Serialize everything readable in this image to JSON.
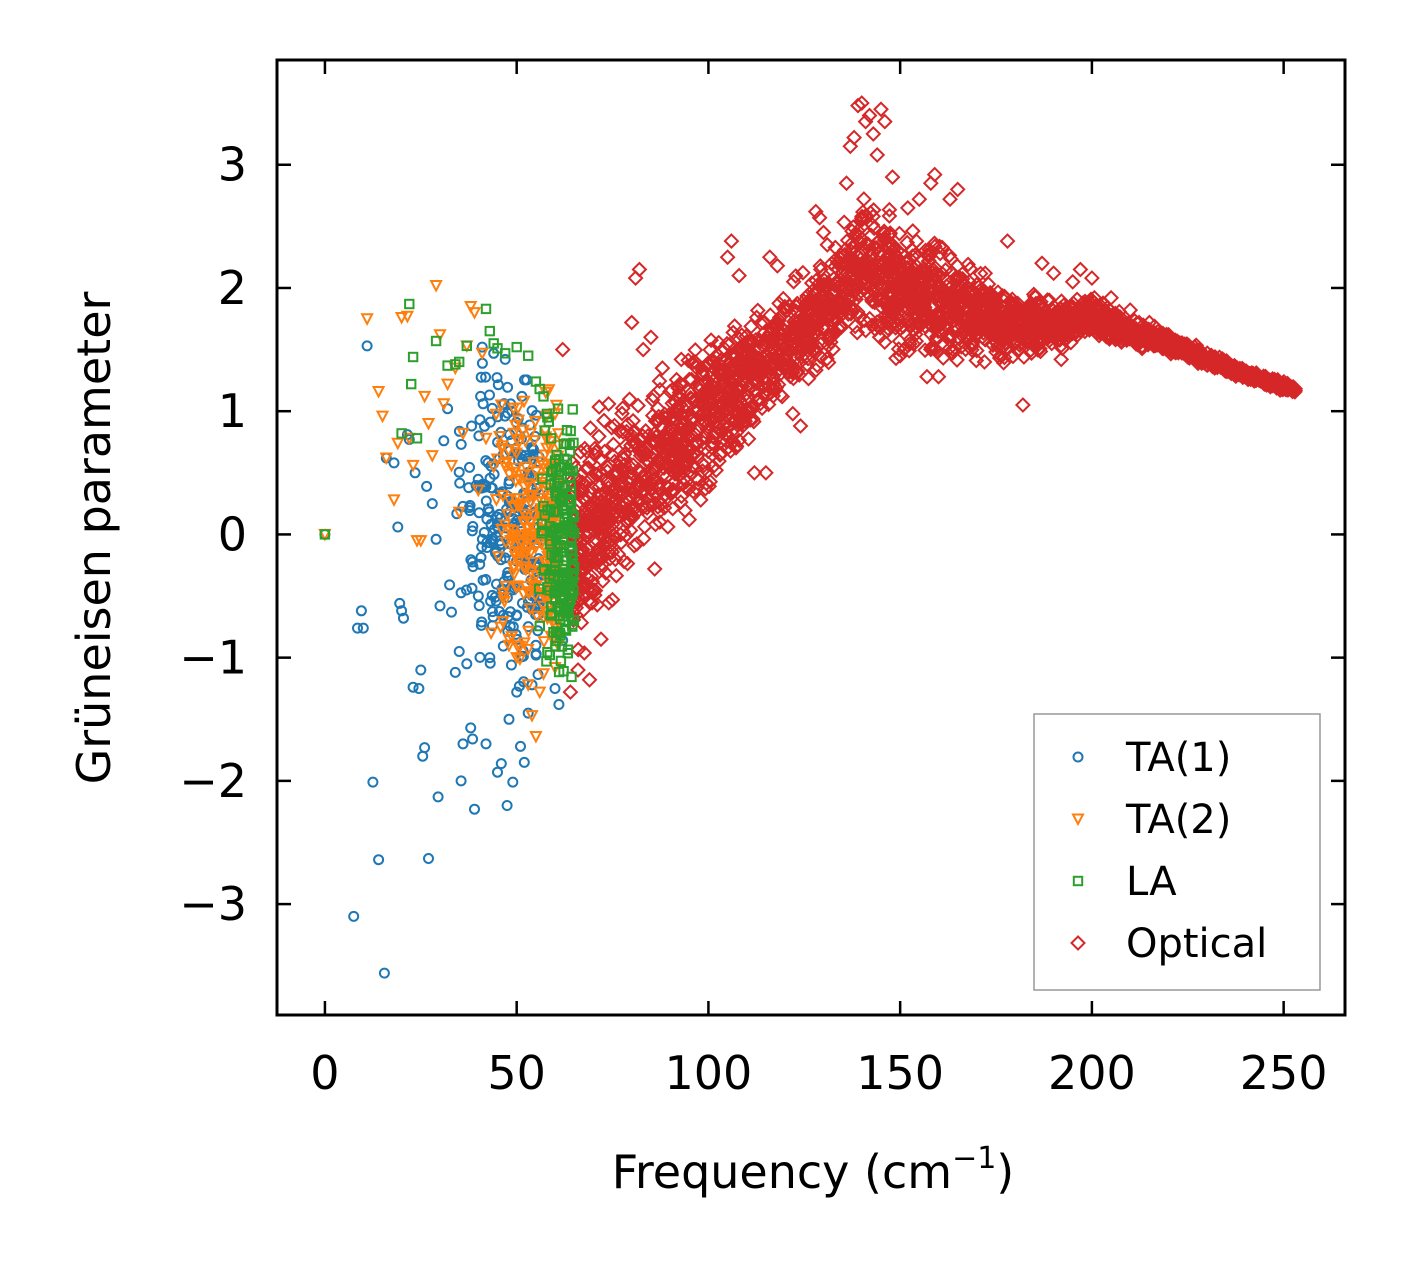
{
  "chart_data": {
    "type": "scatter",
    "title": "",
    "xlabel": "Frequency (cm",
    "xlabel_sup": "−1",
    "xlabel_close": ")",
    "ylabel": "Grüneisen parameter",
    "xlim": [
      -12.5,
      266
    ],
    "ylim": [
      -3.9,
      3.85
    ],
    "xticks": [
      0,
      50,
      100,
      150,
      200,
      250
    ],
    "xtick_labels": [
      "0",
      "50",
      "100",
      "150",
      "200",
      "250"
    ],
    "yticks": [
      -3,
      -2,
      -1,
      0,
      1,
      2,
      3
    ],
    "ytick_labels": [
      "−3",
      "−2",
      "−1",
      "0",
      "1",
      "2",
      "3"
    ],
    "legend_position": "lower-right",
    "grid": false,
    "series": [
      {
        "name": "TA(1)",
        "marker": "circle",
        "color": "#1f77b4",
        "points": [
          [
            0,
            0
          ],
          [
            7.5,
            -3.1
          ],
          [
            8.5,
            -0.76
          ],
          [
            9.5,
            -0.62
          ],
          [
            10,
            -0.76
          ],
          [
            11,
            1.53
          ],
          [
            12.5,
            -2.01
          ],
          [
            14,
            -2.64
          ],
          [
            15.5,
            -3.56
          ],
          [
            16,
            0.62
          ],
          [
            18,
            0.58
          ],
          [
            19,
            0.06
          ],
          [
            19.5,
            -0.56
          ],
          [
            20,
            -0.62
          ],
          [
            20.5,
            -0.68
          ],
          [
            21.5,
            0.81
          ],
          [
            22,
            0.77
          ],
          [
            23,
            -1.24
          ],
          [
            23.5,
            0.5
          ],
          [
            24.5,
            -1.25
          ],
          [
            25,
            -1.1
          ],
          [
            25.5,
            -1.8
          ],
          [
            26,
            -1.73
          ],
          [
            26.5,
            0.39
          ],
          [
            27,
            -2.63
          ],
          [
            28,
            0.25
          ],
          [
            29,
            -0.04
          ],
          [
            29.5,
            -2.13
          ],
          [
            30,
            -0.58
          ],
          [
            31,
            0.76
          ],
          [
            32,
            1.02
          ],
          [
            32.5,
            -0.41
          ],
          [
            33,
            -0.63
          ],
          [
            34,
            -1.12
          ],
          [
            35,
            -0.95
          ],
          [
            35.5,
            -2.0
          ],
          [
            36,
            -1.7
          ],
          [
            37,
            -1.05
          ],
          [
            37.5,
            0.38
          ],
          [
            38,
            -1.57
          ],
          [
            38.5,
            -1.66
          ],
          [
            39,
            -2.23
          ],
          [
            40,
            -0.5
          ],
          [
            41,
            1.52
          ],
          [
            42,
            -1.7
          ],
          [
            43,
            -1.0
          ],
          [
            44,
            1.47
          ],
          [
            45,
            -1.93
          ],
          [
            46,
            -1.86
          ],
          [
            47,
            1.42
          ],
          [
            47.5,
            -2.2
          ],
          [
            48,
            -1.5
          ],
          [
            49,
            -2.01
          ],
          [
            50,
            -1.28
          ],
          [
            51,
            -1.72
          ],
          [
            52,
            -1.85
          ],
          [
            53,
            -1.45
          ],
          [
            54,
            -1.22
          ],
          [
            55,
            -0.9
          ],
          [
            56,
            -0.52
          ],
          [
            57,
            -0.33
          ],
          [
            58,
            0.32
          ],
          [
            59,
            0.05
          ],
          [
            60,
            -1.25
          ],
          [
            61,
            -1.38
          ],
          [
            62,
            -0.86
          ]
        ],
        "cluster": {
          "count": 260,
          "x_range": [
            33,
            56
          ],
          "y_range": [
            -1.3,
            1.45
          ]
        }
      },
      {
        "name": "TA(2)",
        "marker": "triangle-down",
        "color": "#ff7f0e",
        "points": [
          [
            0,
            0
          ],
          [
            11,
            1.75
          ],
          [
            14,
            1.16
          ],
          [
            15,
            0.96
          ],
          [
            16,
            0.62
          ],
          [
            18,
            0.28
          ],
          [
            19,
            0.74
          ],
          [
            20,
            1.76
          ],
          [
            21.5,
            1.77
          ],
          [
            22,
            0.78
          ],
          [
            23,
            0.56
          ],
          [
            24,
            -0.05
          ],
          [
            25,
            -0.05
          ],
          [
            26,
            1.12
          ],
          [
            27,
            0.9
          ],
          [
            28,
            0.64
          ],
          [
            29,
            2.02
          ],
          [
            30,
            1.62
          ],
          [
            31,
            1.06
          ],
          [
            32,
            1.22
          ],
          [
            33,
            0.56
          ],
          [
            34,
            1.35
          ],
          [
            35,
            0.18
          ],
          [
            36,
            0.82
          ],
          [
            37,
            1.53
          ],
          [
            38,
            1.85
          ],
          [
            39,
            1.8
          ],
          [
            40,
            0.36
          ],
          [
            41,
            1.47
          ],
          [
            42,
            0.78
          ],
          [
            44,
            0.55
          ],
          [
            46,
            1.05
          ],
          [
            48,
            -0.9
          ],
          [
            50,
            -1.0
          ],
          [
            52,
            -0.88
          ],
          [
            53,
            -1.22
          ],
          [
            54,
            -1.47
          ],
          [
            55,
            -1.64
          ],
          [
            56,
            -1.28
          ],
          [
            57,
            -1.13
          ],
          [
            58,
            -0.68
          ],
          [
            59,
            -0.28
          ],
          [
            60,
            -1.08
          ],
          [
            61,
            -0.49
          ],
          [
            62,
            0.01
          ]
        ],
        "cluster": {
          "count": 260,
          "x_range": [
            43,
            61
          ],
          "y_range": [
            -1.2,
            1.3
          ]
        }
      },
      {
        "name": "LA",
        "marker": "square",
        "color": "#2ca02c",
        "points": [
          [
            0,
            0
          ],
          [
            20,
            0.82
          ],
          [
            22,
            1.87
          ],
          [
            22.5,
            1.22
          ],
          [
            23,
            1.44
          ],
          [
            24,
            0.78
          ],
          [
            29,
            1.57
          ],
          [
            32,
            1.37
          ],
          [
            34,
            1.38
          ],
          [
            35,
            1.4
          ],
          [
            37,
            1.53
          ],
          [
            42,
            1.83
          ],
          [
            43,
            1.65
          ],
          [
            44,
            1.55
          ],
          [
            45,
            1.51
          ],
          [
            47,
            1.47
          ],
          [
            50,
            1.52
          ],
          [
            53,
            1.45
          ],
          [
            55,
            1.24
          ],
          [
            56,
            1.18
          ],
          [
            57,
            1.12
          ],
          [
            58,
            0.95
          ],
          [
            59,
            0.78
          ],
          [
            60,
            0.6
          ],
          [
            61,
            0.44
          ],
          [
            62,
            0.3
          ],
          [
            63,
            0.07
          ],
          [
            64,
            0.04
          ],
          [
            65,
            0.01
          ]
        ],
        "cluster": {
          "count": 200,
          "x_range": [
            55,
            65
          ],
          "y_range": [
            -1.2,
            1.1
          ]
        }
      },
      {
        "name": "Optical",
        "marker": "diamond",
        "color": "#d62728",
        "points": [
          [
            62,
            1.5
          ],
          [
            64,
            -1.28
          ],
          [
            66,
            -1.1
          ],
          [
            69,
            -1.18
          ],
          [
            72,
            -0.85
          ],
          [
            75,
            -0.53
          ],
          [
            78,
            -0.22
          ],
          [
            80,
            1.72
          ],
          [
            81,
            2.08
          ],
          [
            82,
            2.15
          ],
          [
            83,
            1.5
          ],
          [
            85,
            1.6
          ],
          [
            86,
            -0.28
          ],
          [
            88,
            1.35
          ],
          [
            92,
            0.52
          ],
          [
            95,
            0.12
          ],
          [
            98,
            0.28
          ],
          [
            102,
            0.52
          ],
          [
            105,
            2.25
          ],
          [
            106,
            2.38
          ],
          [
            108,
            2.1
          ],
          [
            110,
            1.02
          ],
          [
            112,
            0.5
          ],
          [
            115,
            0.5
          ],
          [
            116,
            2.25
          ],
          [
            118,
            2.18
          ],
          [
            120,
            1.65
          ],
          [
            122,
            0.98
          ],
          [
            124,
            0.88
          ],
          [
            126,
            1.58
          ],
          [
            128,
            2.62
          ],
          [
            129,
            2.57
          ],
          [
            130,
            2.45
          ],
          [
            131,
            2.35
          ],
          [
            134,
            1.88
          ],
          [
            136,
            2.85
          ],
          [
            137,
            3.15
          ],
          [
            138,
            3.22
          ],
          [
            139,
            3.48
          ],
          [
            140,
            3.5
          ],
          [
            141,
            3.35
          ],
          [
            142,
            3.4
          ],
          [
            143,
            3.25
          ],
          [
            144,
            3.08
          ],
          [
            145,
            3.45
          ],
          [
            146,
            3.35
          ],
          [
            148,
            2.9
          ],
          [
            150,
            1.45
          ],
          [
            152,
            2.65
          ],
          [
            155,
            2.72
          ],
          [
            157,
            1.28
          ],
          [
            158,
            2.85
          ],
          [
            159,
            2.92
          ],
          [
            160,
            1.28
          ],
          [
            163,
            2.72
          ],
          [
            165,
            2.8
          ],
          [
            168,
            2.05
          ],
          [
            170,
            1.85
          ],
          [
            172,
            1.4
          ],
          [
            175,
            1.48
          ],
          [
            178,
            2.38
          ],
          [
            180,
            1.55
          ],
          [
            182,
            1.05
          ],
          [
            185,
            1.6
          ],
          [
            187,
            2.2
          ],
          [
            190,
            2.12
          ],
          [
            192,
            1.42
          ],
          [
            195,
            2.05
          ],
          [
            197,
            2.15
          ],
          [
            200,
            2.08
          ],
          [
            205,
            1.92
          ],
          [
            210,
            1.82
          ],
          [
            215,
            1.72
          ],
          [
            220,
            1.62
          ],
          [
            225,
            1.5
          ],
          [
            230,
            1.42
          ],
          [
            235,
            1.35
          ],
          [
            240,
            1.28
          ],
          [
            245,
            1.22
          ],
          [
            250,
            1.19
          ],
          [
            253,
            1.17
          ]
        ],
        "band": {
          "count": 3200,
          "x": [
            64,
            70,
            80,
            90,
            100,
            110,
            120,
            130,
            135,
            140,
            145,
            150,
            160,
            170,
            180,
            190,
            200,
            210,
            220,
            230,
            240,
            250,
            253
          ],
          "low": [
            -1.3,
            -1.0,
            -0.5,
            -0.1,
            0.2,
            0.6,
            1.0,
            1.3,
            1.5,
            1.45,
            1.4,
            1.35,
            1.3,
            1.3,
            1.35,
            1.45,
            1.55,
            1.5,
            1.45,
            1.35,
            1.25,
            1.15,
            1.15
          ],
          "high": [
            0.8,
            1.1,
            1.4,
            1.5,
            1.75,
            1.9,
            2.1,
            2.3,
            2.6,
            3.0,
            2.9,
            2.6,
            2.5,
            2.25,
            2.05,
            1.95,
            2.0,
            1.8,
            1.65,
            1.5,
            1.35,
            1.25,
            1.2
          ]
        }
      }
    ]
  }
}
